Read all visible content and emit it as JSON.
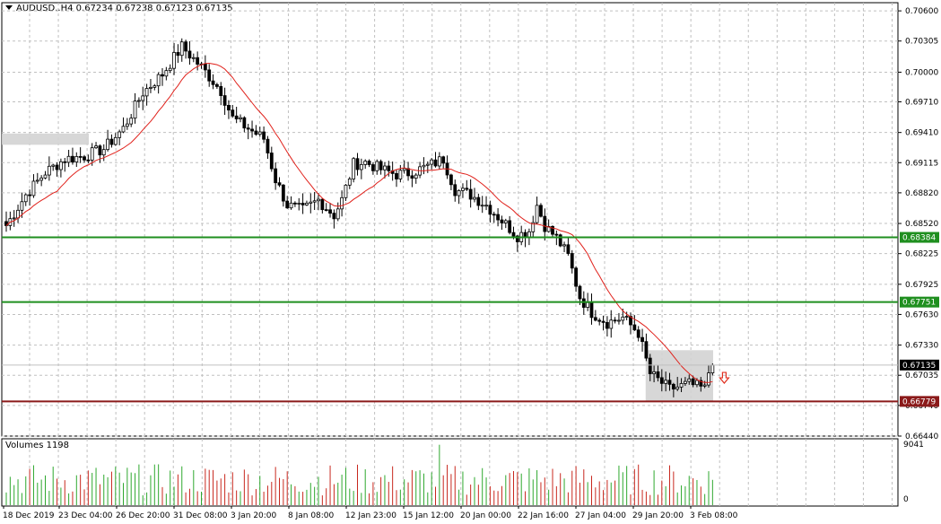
{
  "header": {
    "symbol": "AUDUSD..H4",
    "ohlc": "0.67234 0.67238 0.67123 0.67135"
  },
  "volumes": {
    "label": "Volumes 1198"
  },
  "chart_data": {
    "type": "candlestick",
    "title": "AUDUSD..H4",
    "ylim": [
      0.6644,
      0.7068
    ],
    "price_ticks": [
      "0.70600",
      "0.70305",
      "0.70000",
      "0.69710",
      "0.69410",
      "0.69115",
      "0.68820",
      "0.68520",
      "0.68225",
      "0.67925",
      "0.67630",
      "0.67330",
      "0.67035",
      "0.66740",
      "0.66440"
    ],
    "volume_ticks": [
      "9041",
      "0"
    ],
    "volume_max": 9041,
    "x_labels": [
      "18 Dec 2019",
      "23 Dec 04:00",
      "26 Dec 20:00",
      "31 Dec 08:00",
      "3 Jan 20:00",
      "8 Jan 08:00",
      "12 Jan 23:00",
      "15 Jan 12:00",
      "20 Jan 00:00",
      "22 Jan 16:00",
      "27 Jan 04:00",
      "29 Jan 20:00",
      "3 Feb 08:00"
    ],
    "current_price": {
      "label": "0.67135",
      "value": 0.67135
    },
    "levels": [
      {
        "label": "0.68384",
        "value": 0.68384,
        "color": "#1f8f1f"
      },
      {
        "label": "0.67751",
        "value": 0.67751,
        "color": "#1f8f1f"
      },
      {
        "label": "0.66779",
        "value": 0.66779,
        "color": "#8b1a1a"
      }
    ],
    "zones": [
      {
        "label": "resistance-zone",
        "from": 0,
        "to": 20,
        "top": 0.694,
        "bottom": 0.6929,
        "color": "#d3d3d3"
      },
      {
        "label": "consolidation-zone",
        "from": 165,
        "to": 180,
        "top": 0.6728,
        "bottom": 0.6678,
        "color": "#d3d3d3"
      }
    ],
    "signal": {
      "direction": "down",
      "index": 184,
      "value": 0.6701,
      "color": "#e03020"
    },
    "ma_color": "#e0201a",
    "up_color": "#ffffff",
    "down_color": "#000000",
    "vol_up_color": "#2ea82e",
    "vol_down_color": "#c8281e",
    "anchors": [
      [
        0,
        0.685
      ],
      [
        5,
        0.688
      ],
      [
        10,
        0.6902
      ],
      [
        15,
        0.6915
      ],
      [
        20,
        0.6918
      ],
      [
        25,
        0.6925
      ],
      [
        30,
        0.6945
      ],
      [
        35,
        0.698
      ],
      [
        40,
        0.6998
      ],
      [
        45,
        0.7025
      ],
      [
        50,
        0.7005
      ],
      [
        55,
        0.6982
      ],
      [
        58,
        0.6955
      ],
      [
        62,
        0.6945
      ],
      [
        66,
        0.6935
      ],
      [
        69,
        0.6895
      ],
      [
        72,
        0.687
      ],
      [
        76,
        0.6865
      ],
      [
        80,
        0.6875
      ],
      [
        84,
        0.686
      ],
      [
        86,
        0.6875
      ],
      [
        89,
        0.691
      ],
      [
        92,
        0.6912
      ],
      [
        96,
        0.6905
      ],
      [
        100,
        0.69
      ],
      [
        104,
        0.6902
      ],
      [
        108,
        0.6908
      ],
      [
        112,
        0.6915
      ],
      [
        115,
        0.6885
      ],
      [
        119,
        0.688
      ],
      [
        123,
        0.687
      ],
      [
        127,
        0.6855
      ],
      [
        131,
        0.684
      ],
      [
        134,
        0.6845
      ],
      [
        136,
        0.687
      ],
      [
        138,
        0.685
      ],
      [
        141,
        0.6838
      ],
      [
        144,
        0.682
      ],
      [
        147,
        0.678
      ],
      [
        150,
        0.6765
      ],
      [
        154,
        0.6755
      ],
      [
        158,
        0.676
      ],
      [
        162,
        0.6745
      ],
      [
        165,
        0.6705
      ],
      [
        170,
        0.669
      ],
      [
        175,
        0.6695
      ],
      [
        179,
        0.669
      ],
      [
        181,
        0.6723
      ]
    ]
  }
}
